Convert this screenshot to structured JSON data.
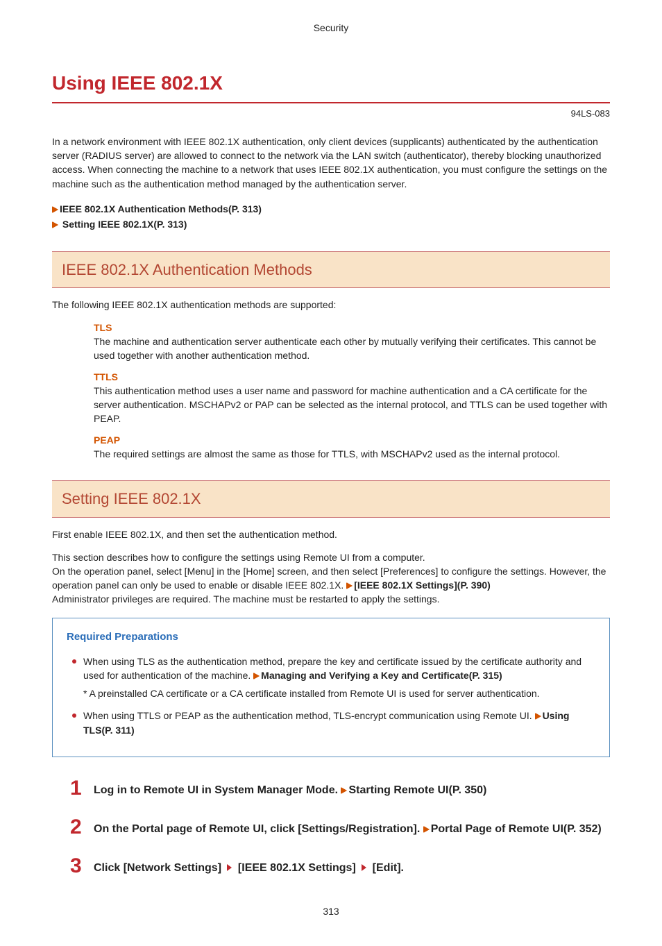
{
  "header": {
    "category": "Security"
  },
  "title": "Using IEEE 802.1X",
  "doc_code": "94LS-083",
  "intro": "In a network environment with IEEE 802.1X authentication, only client devices (supplicants) authenticated by the authentication server (RADIUS server) are allowed to connect to the network via the LAN switch (authenticator), thereby blocking unauthorized access. When connecting the machine to a network that uses IEEE 802.1X authentication, you must configure the settings on the machine such as the authentication method managed by the authentication server.",
  "toc": {
    "item1": "IEEE 802.1X Authentication Methods(P. 313)",
    "item2": " Setting IEEE 802.1X(P. 313)"
  },
  "section1": {
    "heading": "IEEE 802.1X Authentication Methods",
    "lead": "The following IEEE 802.1X authentication methods are supported:",
    "tls": {
      "title": "TLS",
      "body": "The machine and authentication server authenticate each other by mutually verifying their certificates. This cannot be used together with another authentication method."
    },
    "ttls": {
      "title": "TTLS",
      "body": "This authentication method uses a user name and password for machine authentication and a CA certificate for the server authentication. MSCHAPv2 or PAP can be selected as the internal protocol, and TTLS can be used together with PEAP."
    },
    "peap": {
      "title": "PEAP",
      "body": "The required settings are almost the same as those for TTLS, with MSCHAPv2 used as the internal protocol."
    }
  },
  "section2": {
    "heading": "Setting IEEE 802.1X",
    "lead1": "First enable IEEE 802.1X, and then set the authentication method.",
    "lead2a": "This section describes how to configure the settings using Remote UI from a computer.",
    "lead2b_pre": "On the operation panel, select [Menu] in the [Home] screen, and then select [Preferences] to configure the settings. However, the operation panel can only be used to enable or disable IEEE 802.1X. ",
    "lead2b_link": "[IEEE 802.1X Settings](P. 390)",
    "lead2c": "Administrator privileges are required. The machine must be restarted to apply the settings.",
    "prep": {
      "title": "Required Preparations",
      "b1_pre": "When using TLS as the authentication method, prepare the key and certificate issued by the certificate authority and used for authentication of the machine. ",
      "b1_link": "Managing and Verifying a Key and Certificate(P. 315)",
      "b1_note": "* A preinstalled CA certificate or a CA certificate installed from Remote UI is used for server authentication.",
      "b2_pre": "When using TTLS or PEAP as the authentication method, TLS-encrypt communication using Remote UI. ",
      "b2_link": "Using TLS(P. 311)"
    },
    "steps": {
      "s1_num": "1",
      "s1_text": "Log in to Remote UI in System Manager Mode. ",
      "s1_link": "Starting Remote UI(P. 350)",
      "s2_num": "2",
      "s2_text": "On the Portal page of Remote UI, click [Settings/Registration]. ",
      "s2_link": "Portal Page of Remote UI(P. 352)",
      "s3_num": "3",
      "s3_a": "Click [Network Settings] ",
      "s3_b": " [IEEE 802.1X Settings] ",
      "s3_c": " [Edit]."
    }
  },
  "page_number": "313",
  "colors": {
    "accent": "#c1272d",
    "section_bg": "#f9e3c7",
    "section_text": "#b34733",
    "link_icon": "#d35400",
    "prep_border": "#5a8fbf",
    "prep_title": "#2a6db8"
  }
}
